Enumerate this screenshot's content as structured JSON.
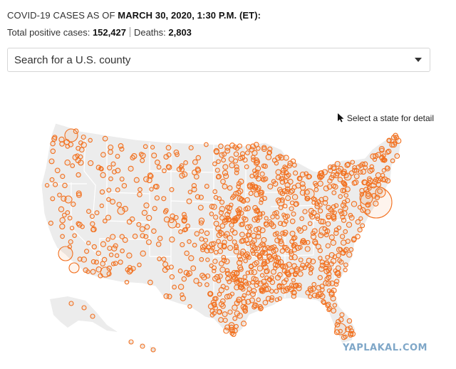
{
  "header": {
    "cases_as_of_prefix": "COVID-19 CASES AS OF ",
    "cases_as_of_date": "MARCH 30, 2020, 1:30 P.M. (ET):",
    "total_label": "Total positive cases: ",
    "total_value": "152,427",
    "deaths_label": "Deaths: ",
    "deaths_value": "2,803"
  },
  "search": {
    "placeholder": "Search for a U.S. county",
    "dropdown_icon": "caret-down-icon"
  },
  "map": {
    "hint_icon": "cursor-arrow-icon",
    "hint_text": "Select a state for detail",
    "land_color": "#ececec",
    "border_color": "#ffffff",
    "bubble_color": "#f2701f"
  },
  "watermark": "YAPLAKAL.COM"
}
